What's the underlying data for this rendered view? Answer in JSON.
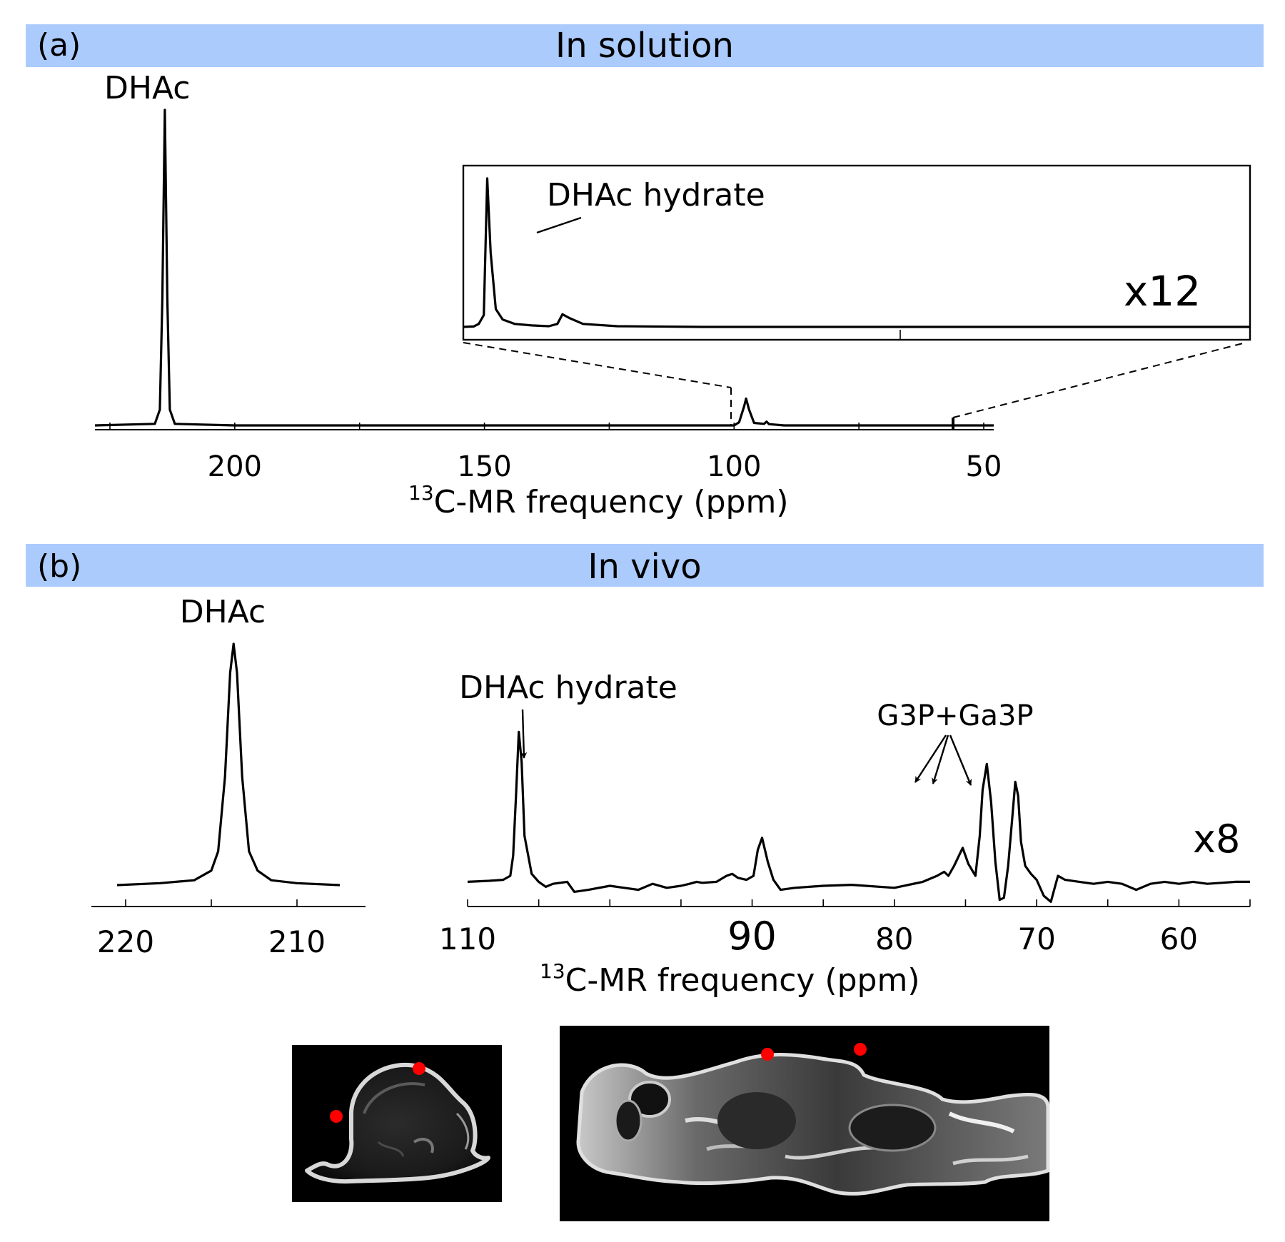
{
  "colors": {
    "header_band": "#abcbfd",
    "spectrum": "#000000",
    "marker": "#ff0000",
    "mri_background": "#000000"
  },
  "panel_a": {
    "label": "(a)",
    "title": "In solution",
    "peak_label": "DHAc",
    "inset_label": "DHAc hydrate",
    "inset_scale": "x12",
    "xlabel_sup": "13",
    "xlabel_main": "C-MR frequency (ppm)"
  },
  "panel_b": {
    "label": "(b)",
    "title": "In vivo",
    "peak_label": "DHAc",
    "hydrate_label": "DHAc hydrate",
    "metabolite_label": "G3P+Ga3P",
    "scale": "x8",
    "xlabel_sup": "13",
    "xlabel_main": "C-MR frequency (ppm)"
  },
  "images": {
    "axial_mri": "axial-mri-image",
    "coronal_mri": "coronal-mri-image"
  },
  "chart_data": [
    {
      "type": "line",
      "panel": "(a)",
      "title": "In solution",
      "xlabel": "13C-MR frequency (ppm)",
      "x_reversed": true,
      "xlim": [
        228,
        48
      ],
      "xticks": [
        200,
        150,
        100,
        50
      ],
      "series": [
        {
          "x": [
            228,
            216,
            215,
            214.5,
            214,
            213.5,
            213,
            212,
            200,
            150,
            100,
            99,
            98,
            97.6,
            97,
            96,
            94,
            93.5,
            93,
            90,
            48
          ],
          "y": [
            0,
            0.005,
            0.05,
            0.4,
            1.0,
            0.4,
            0.05,
            0.005,
            0,
            0,
            0,
            0.01,
            0.06,
            0.085,
            0.05,
            0.008,
            0.005,
            0.012,
            0.004,
            0,
            0
          ]
        }
      ],
      "annotations": [
        "DHAc",
        "DHAc hydrate",
        "x12"
      ]
    },
    {
      "type": "line",
      "panel": "(a) inset",
      "xlim": [
        99,
        53
      ],
      "series": [
        {
          "x": [
            99,
            98.4,
            98.1,
            97.8,
            97.6,
            97.4,
            97.1,
            96.7,
            96,
            95,
            94,
            93.5,
            93.2,
            92.8,
            92,
            90,
            85,
            75,
            65,
            53
          ],
          "y": [
            0,
            0.003,
            0.02,
            0.08,
            1.0,
            0.5,
            0.12,
            0.05,
            0.02,
            0.01,
            0.005,
            0.02,
            0.085,
            0.06,
            0.02,
            0.005,
            0,
            0,
            0,
            0
          ]
        }
      ]
    },
    {
      "type": "line",
      "panel": "(b) left",
      "title": "In vivo",
      "x_reversed": true,
      "xlim": [
        222,
        206
      ],
      "xticks": [
        220,
        210
      ],
      "series": [
        {
          "x": [
            220.5,
            218,
            216,
            215,
            214.6,
            214.2,
            213.9,
            213.7,
            213.5,
            213.2,
            212.8,
            212.3,
            211.5,
            210,
            207.5
          ],
          "y": [
            0,
            0.008,
            0.02,
            0.06,
            0.14,
            0.45,
            0.88,
            1.0,
            0.88,
            0.45,
            0.14,
            0.06,
            0.02,
            0.008,
            0
          ]
        }
      ],
      "annotations": [
        "DHAc"
      ]
    },
    {
      "type": "line",
      "panel": "(b) right",
      "xlabel": "13C-MR frequency (ppm)",
      "x_reversed": true,
      "xlim": [
        110,
        55
      ],
      "xticks": [
        110,
        90,
        80,
        70,
        60
      ],
      "series": [
        {
          "x": [
            110,
            108.5,
            107.5,
            107,
            106.8,
            106.6,
            106.4,
            106.2,
            106,
            105.5,
            105,
            104.5,
            104,
            103,
            102.5,
            101.5,
            100,
            99,
            98,
            97,
            96,
            95,
            94.4,
            93.9,
            93.5,
            92.5,
            91.8,
            91.4,
            91,
            90.4,
            89.9,
            89.6,
            89.3,
            88.9,
            88.5,
            88,
            87,
            85,
            83,
            80,
            78,
            77,
            76.5,
            76.2,
            75.8,
            75.2,
            74.8,
            74.3,
            74,
            73.8,
            73.5,
            73.2,
            72.9,
            72.6,
            72.3,
            72,
            71.7,
            71.5,
            71.3,
            71.1,
            70.8,
            70.4,
            70,
            69.5,
            69,
            68.5,
            68,
            67,
            66,
            65,
            64,
            63,
            62,
            61,
            60,
            59,
            58,
            57,
            56,
            55
          ],
          "y": [
            0.02,
            0.025,
            0.03,
            0.05,
            0.15,
            0.45,
            0.77,
            0.62,
            0.25,
            0.06,
            0.02,
            -0.005,
            0.01,
            0.02,
            -0.03,
            -0.02,
            0,
            -0.01,
            -0.02,
            0.01,
            -0.01,
            0,
            0.01,
            0.02,
            0.015,
            0.02,
            0.05,
            0.06,
            0.04,
            0.03,
            0.05,
            0.18,
            0.24,
            0.12,
            0.03,
            -0.02,
            -0.01,
            0,
            0.005,
            -0.01,
            0.02,
            0.05,
            0.07,
            0.05,
            0.1,
            0.19,
            0.11,
            0.05,
            0.25,
            0.48,
            0.61,
            0.42,
            0.12,
            -0.07,
            -0.06,
            0.1,
            0.35,
            0.52,
            0.45,
            0.22,
            0.1,
            0.06,
            0.03,
            -0.05,
            -0.08,
            0.05,
            0.03,
            0.02,
            0.01,
            0.02,
            0.01,
            -0.02,
            0.01,
            0.02,
            0.01,
            0.02,
            0.01,
            0.015,
            0.02,
            0.02
          ],
          "peaks": [
            {
              "name": "DHAc hydrate",
              "x": 106.4
            },
            {
              "name": "G3P+Ga3P",
              "x": 73.6
            },
            {
              "name": "G3P+Ga3P",
              "x": 71.6
            }
          ]
        }
      ],
      "annotations": [
        "DHAc hydrate",
        "G3P+Ga3P",
        "x8"
      ]
    }
  ]
}
